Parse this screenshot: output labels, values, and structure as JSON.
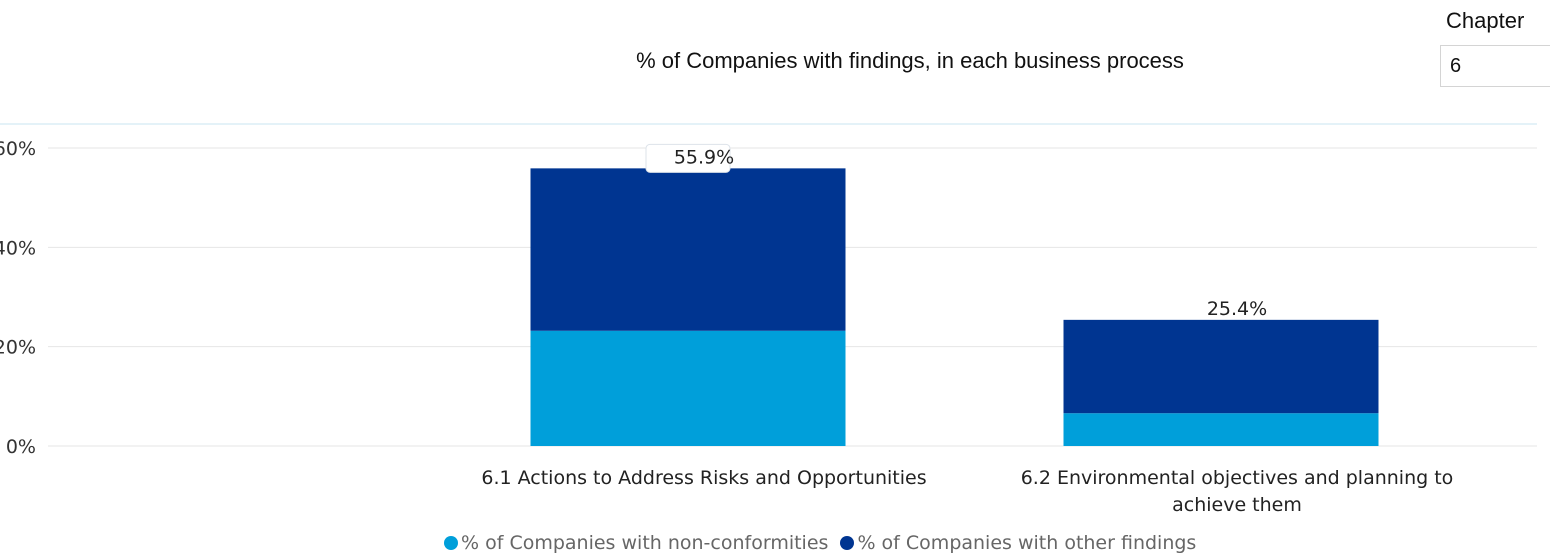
{
  "slicer": {
    "label": "Chapter",
    "value": "6"
  },
  "chart_data": {
    "type": "bar",
    "stacked": true,
    "title": "% of Companies with findings, in each business process",
    "categories": [
      "6.1 Actions to Address Risks and Opportunities",
      "6.2 Environmental objectives and planning to achieve them"
    ],
    "series": [
      {
        "name": "% of Companies with non-conformities",
        "values": [
          23.2,
          6.6
        ],
        "color": "#009FDA"
      },
      {
        "name": "% of Companies with other findings",
        "values": [
          32.7,
          18.8
        ],
        "color": "#003591"
      }
    ],
    "totals": [
      55.9,
      25.4
    ],
    "total_labels": [
      "55.9%",
      "25.4%"
    ],
    "ylim": [
      0,
      60
    ],
    "yticks": [
      0,
      20,
      40,
      60
    ],
    "ytick_labels": [
      "0%",
      "20%",
      "40%",
      "60%"
    ],
    "grid": true,
    "legend_position": "bottom"
  }
}
